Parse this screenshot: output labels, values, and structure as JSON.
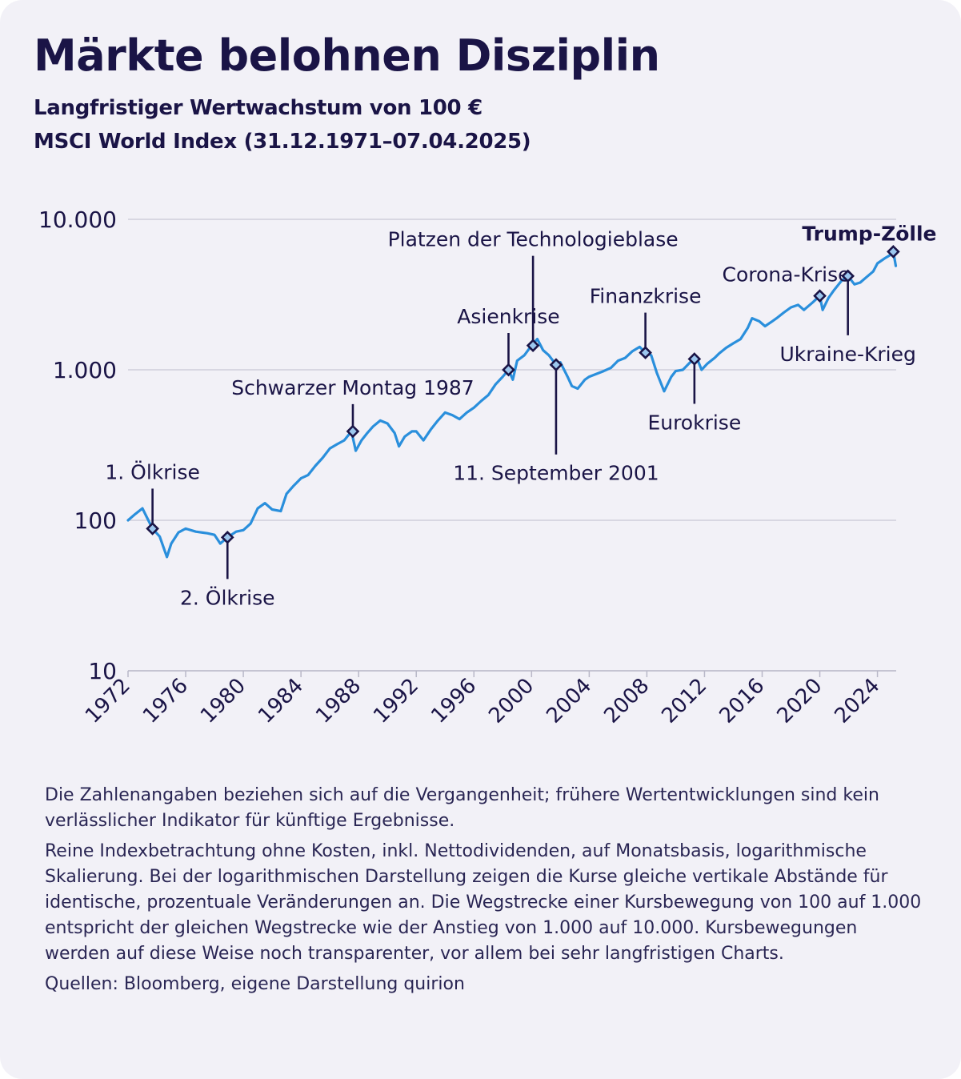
{
  "header": {
    "title": "Märkte belohnen Disziplin",
    "subtitle_line1": "Langfristiger Wertwachstum von 100 €",
    "subtitle_line2": "MSCI World Index (31.12.1971–07.04.2025)"
  },
  "chart_data": {
    "type": "line",
    "y_scale": "log",
    "ylim": [
      10,
      10000
    ],
    "y_ticks": [
      10,
      100,
      1000,
      10000
    ],
    "y_tick_labels": [
      "10",
      "100",
      "1.000",
      "10.000"
    ],
    "x_ticks": [
      1972,
      1976,
      1980,
      1984,
      1988,
      1992,
      1996,
      2000,
      2004,
      2008,
      2012,
      2016,
      2020,
      2024
    ],
    "xlim": [
      1972,
      2025.3
    ],
    "grid": true,
    "colors": {
      "line": "#2a8fdc",
      "grid": "#c9c8d6",
      "marker": "#1a1446",
      "marker_fill": "#9dc7ee"
    },
    "series": [
      {
        "values": [
          [
            1972.0,
            100
          ],
          [
            1972.5,
            110
          ],
          [
            1973.0,
            120
          ],
          [
            1973.3,
            105
          ],
          [
            1973.7,
            88
          ],
          [
            1974.2,
            78
          ],
          [
            1974.7,
            57
          ],
          [
            1975.0,
            70
          ],
          [
            1975.5,
            83
          ],
          [
            1976.0,
            88
          ],
          [
            1976.7,
            84
          ],
          [
            1977.5,
            82
          ],
          [
            1978.0,
            80
          ],
          [
            1978.4,
            70
          ],
          [
            1978.9,
            77
          ],
          [
            1979.5,
            84
          ],
          [
            1980.0,
            86
          ],
          [
            1980.5,
            95
          ],
          [
            1981.0,
            120
          ],
          [
            1981.5,
            130
          ],
          [
            1982.0,
            118
          ],
          [
            1982.6,
            115
          ],
          [
            1983.0,
            150
          ],
          [
            1983.5,
            170
          ],
          [
            1984.0,
            190
          ],
          [
            1984.5,
            200
          ],
          [
            1985.0,
            230
          ],
          [
            1985.5,
            260
          ],
          [
            1986.0,
            300
          ],
          [
            1986.5,
            320
          ],
          [
            1987.0,
            340
          ],
          [
            1987.5,
            390
          ],
          [
            1987.8,
            290
          ],
          [
            1988.2,
            340
          ],
          [
            1988.6,
            380
          ],
          [
            1989.0,
            420
          ],
          [
            1989.5,
            460
          ],
          [
            1990.0,
            440
          ],
          [
            1990.5,
            380
          ],
          [
            1990.8,
            310
          ],
          [
            1991.2,
            360
          ],
          [
            1991.7,
            390
          ],
          [
            1992.0,
            390
          ],
          [
            1992.5,
            340
          ],
          [
            1993.0,
            400
          ],
          [
            1993.5,
            460
          ],
          [
            1994.0,
            520
          ],
          [
            1994.5,
            500
          ],
          [
            1995.0,
            470
          ],
          [
            1995.5,
            520
          ],
          [
            1996.0,
            560
          ],
          [
            1996.5,
            620
          ],
          [
            1997.0,
            680
          ],
          [
            1997.5,
            800
          ],
          [
            1998.0,
            900
          ],
          [
            1998.4,
            1000
          ],
          [
            1998.7,
            860
          ],
          [
            1999.0,
            1150
          ],
          [
            1999.5,
            1250
          ],
          [
            2000.0,
            1450
          ],
          [
            2000.4,
            1600
          ],
          [
            2000.8,
            1350
          ],
          [
            2001.2,
            1250
          ],
          [
            2001.7,
            1080
          ],
          [
            2002.0,
            1120
          ],
          [
            2002.5,
            900
          ],
          [
            2002.8,
            780
          ],
          [
            2003.2,
            750
          ],
          [
            2003.7,
            860
          ],
          [
            2004.0,
            900
          ],
          [
            2004.5,
            940
          ],
          [
            2005.0,
            980
          ],
          [
            2005.5,
            1030
          ],
          [
            2006.0,
            1150
          ],
          [
            2006.5,
            1200
          ],
          [
            2007.0,
            1330
          ],
          [
            2007.5,
            1420
          ],
          [
            2007.9,
            1300
          ],
          [
            2008.3,
            1250
          ],
          [
            2008.7,
            950
          ],
          [
            2009.2,
            720
          ],
          [
            2009.7,
            900
          ],
          [
            2010.0,
            980
          ],
          [
            2010.5,
            1000
          ],
          [
            2011.0,
            1120
          ],
          [
            2011.5,
            1180
          ],
          [
            2011.8,
            1000
          ],
          [
            2012.2,
            1100
          ],
          [
            2012.7,
            1200
          ],
          [
            2013.0,
            1280
          ],
          [
            2013.5,
            1400
          ],
          [
            2014.0,
            1500
          ],
          [
            2014.5,
            1600
          ],
          [
            2015.0,
            1900
          ],
          [
            2015.3,
            2200
          ],
          [
            2015.8,
            2100
          ],
          [
            2016.2,
            1950
          ],
          [
            2016.7,
            2100
          ],
          [
            2017.0,
            2200
          ],
          [
            2017.5,
            2400
          ],
          [
            2018.0,
            2600
          ],
          [
            2018.5,
            2700
          ],
          [
            2018.9,
            2500
          ],
          [
            2019.5,
            2800
          ],
          [
            2020.0,
            3100
          ],
          [
            2020.2,
            2500
          ],
          [
            2020.6,
            3000
          ],
          [
            2021.0,
            3400
          ],
          [
            2021.5,
            3900
          ],
          [
            2021.95,
            4200
          ],
          [
            2022.4,
            3700
          ],
          [
            2022.8,
            3800
          ],
          [
            2023.2,
            4100
          ],
          [
            2023.7,
            4500
          ],
          [
            2024.0,
            5100
          ],
          [
            2024.5,
            5500
          ],
          [
            2024.9,
            5800
          ],
          [
            2025.1,
            6100
          ],
          [
            2025.27,
            4900
          ]
        ]
      }
    ],
    "events": [
      {
        "label": "1. Ölkrise",
        "x": 1973.7,
        "y": 88,
        "label_pos": "above"
      },
      {
        "label": "2. Ölkrise",
        "x": 1978.9,
        "y": 77,
        "label_pos": "below"
      },
      {
        "label": "Schwarzer Montag 1987",
        "x": 1987.6,
        "y": 390,
        "label_pos": "above"
      },
      {
        "label": "Asienkrise",
        "x": 1998.4,
        "y": 1000,
        "label_pos": "above"
      },
      {
        "label": "Platzen der Technologieblase",
        "x": 2000.1,
        "y": 1450,
        "label_pos": "above"
      },
      {
        "label": "11. September 2001",
        "x": 2001.7,
        "y": 1080,
        "label_pos": "below"
      },
      {
        "label": "Finanzkrise",
        "x": 2007.9,
        "y": 1300,
        "label_pos": "above"
      },
      {
        "label": "Eurokrise",
        "x": 2011.3,
        "y": 1180,
        "label_pos": "below"
      },
      {
        "label": "Corona-Krise",
        "x": 2020.0,
        "y": 3100,
        "label_pos": "above"
      },
      {
        "label": "Ukraine-Krieg",
        "x": 2021.95,
        "y": 4200,
        "label_pos": "below"
      },
      {
        "label": "Trump-Zölle",
        "x": 2025.1,
        "y": 6100,
        "label_pos": "above",
        "bold": true
      }
    ]
  },
  "notes": {
    "p1": "Die Zahlenangaben beziehen sich auf die Vergangenheit; frühere Wertentwicklungen sind kein verlässlicher Indikator für künftige Ergebnisse.",
    "p2": "Reine Indexbetrachtung ohne Kosten, inkl. Nettodividenden, auf Monatsbasis, logarithmische Skalierung. Bei der logarithmischen Darstellung zeigen die Kurse gleiche vertikale Abstände für identische, prozentuale Veränderungen an. Die Wegstrecke einer Kursbewegung von 100 auf 1.000 entspricht der gleichen Wegstrecke wie der Anstieg von 1.000 auf 10.000. Kursbewegungen werden auf diese Weise noch transparenter, vor allem bei sehr langfristigen Charts.",
    "p3": "Quellen: Bloomberg, eigene Darstellung quirion"
  }
}
